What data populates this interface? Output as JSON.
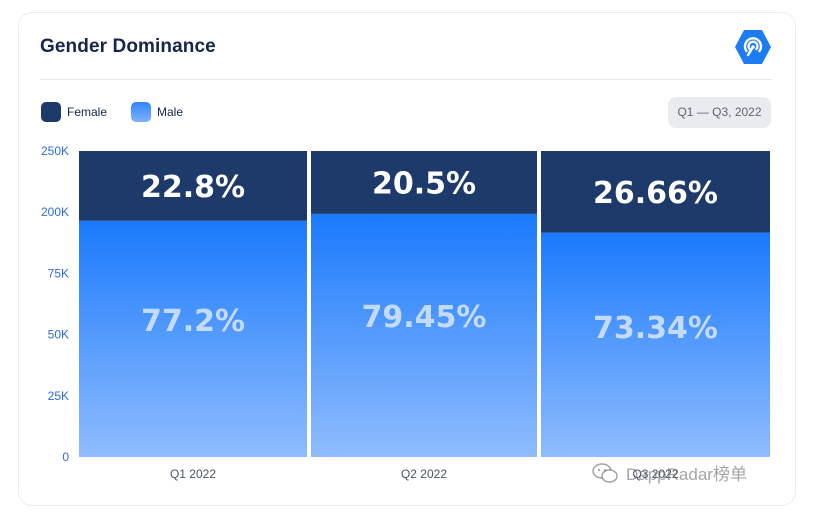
{
  "header": {
    "title": "Gender Dominance",
    "logo_icon": "radar-icon"
  },
  "legend": [
    {
      "label": "Female",
      "color": "#1d3a6b"
    },
    {
      "label": "Male",
      "color": "#2f86fb"
    }
  ],
  "period_button": {
    "label": "Q1 — Q3, 2022"
  },
  "watermark": {
    "text": "DappRadar榜单",
    "icon": "wechat-icon"
  },
  "chart_data": {
    "type": "bar",
    "stacked": true,
    "categories": [
      "Q1 2022",
      "Q2 2022",
      "Q3 2022"
    ],
    "series": [
      {
        "name": "Male",
        "values": [
          77.2,
          79.45,
          73.34
        ],
        "labels": [
          "77.2%",
          "79.45%",
          "73.34%"
        ],
        "color": "#2f86fb"
      },
      {
        "name": "Female",
        "values": [
          22.8,
          20.5,
          26.66
        ],
        "labels": [
          "22.8%",
          "20.5%",
          "26.66%"
        ],
        "color": "#1d3a6b"
      }
    ],
    "y_tick_labels": [
      "0",
      "25K",
      "50K",
      "75K",
      "200K",
      "250K"
    ],
    "ylim": [
      0,
      100
    ],
    "xlabel": "",
    "ylabel": "",
    "grid": false,
    "legend_position": "top-left"
  }
}
